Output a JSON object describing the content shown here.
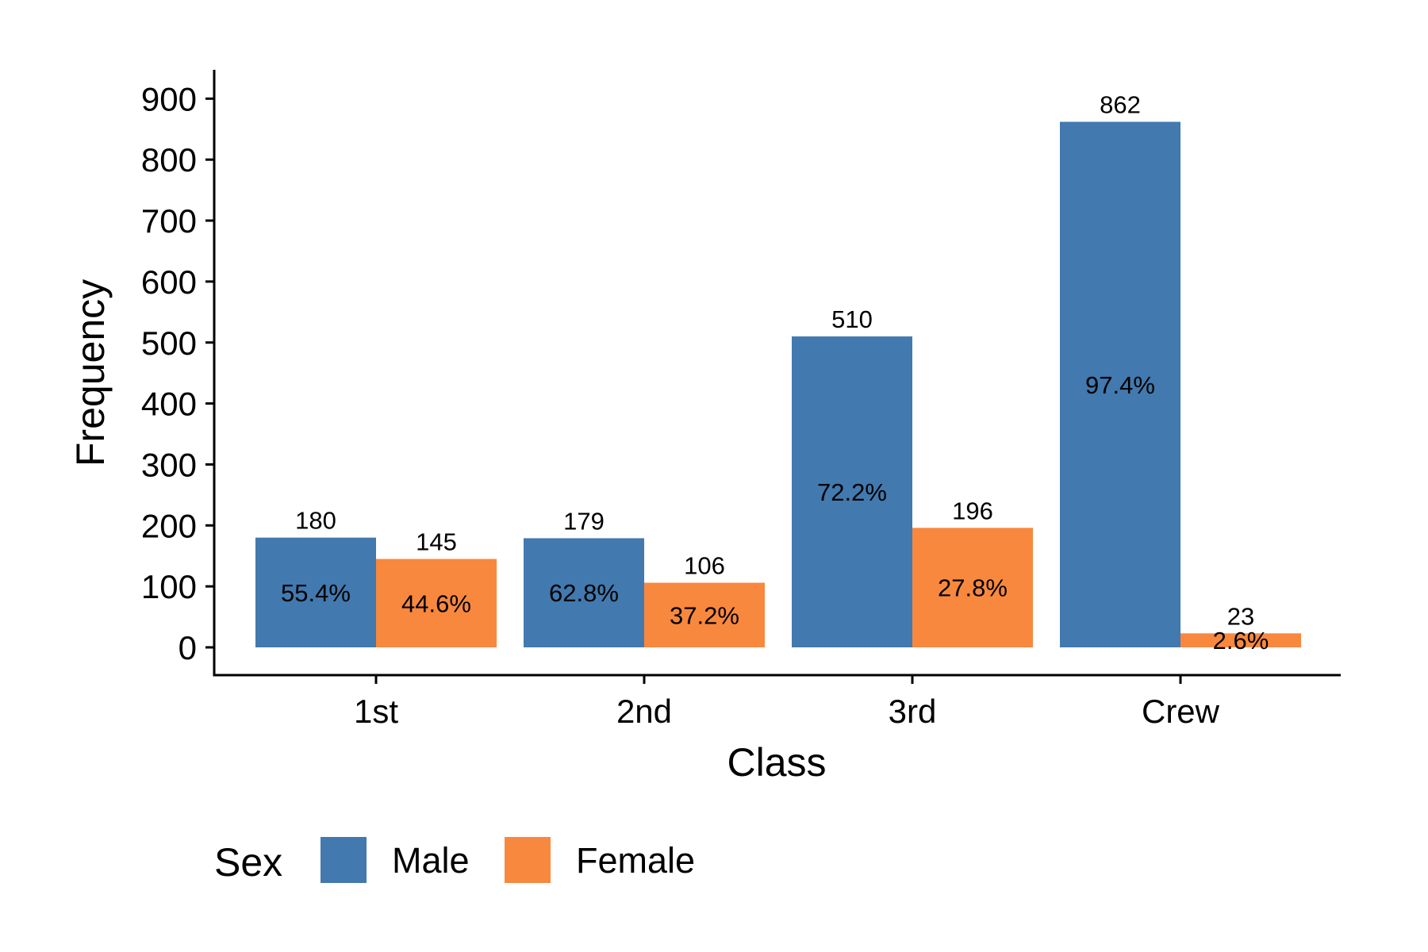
{
  "chart_data": {
    "type": "bar",
    "xlabel": "Class",
    "ylabel": "Frequency",
    "categories": [
      "1st",
      "2nd",
      "3rd",
      "Crew"
    ],
    "series": [
      {
        "name": "Male",
        "color": "#4279AE",
        "values": [
          180,
          179,
          510,
          862
        ],
        "percent_labels": [
          "55.4%",
          "62.8%",
          "72.2%",
          "97.4%"
        ]
      },
      {
        "name": "Female",
        "color": "#F8883E",
        "values": [
          145,
          106,
          196,
          23
        ],
        "percent_labels": [
          "44.6%",
          "37.2%",
          "27.8%",
          "2.6%"
        ]
      }
    ],
    "ylim": [
      0,
      900
    ],
    "yticks": [
      0,
      100,
      200,
      300,
      400,
      500,
      600,
      700,
      800,
      900
    ],
    "grid": false,
    "legend": {
      "title": "Sex",
      "placement": "bottom-left"
    }
  }
}
